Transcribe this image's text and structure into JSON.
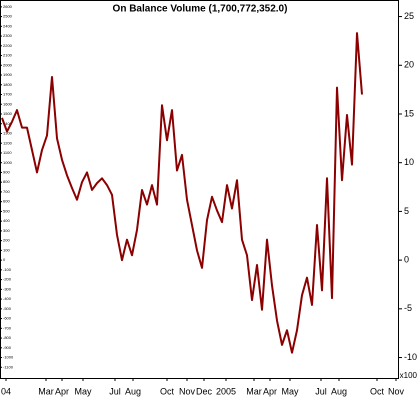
{
  "chart_data": {
    "type": "line",
    "title": "On Balance Volume (1,700,772,352.0)",
    "y_label": "x100",
    "x": [
      0,
      1,
      2,
      3,
      4,
      5,
      6,
      7,
      8,
      9,
      10,
      11,
      12,
      13,
      14,
      15,
      16,
      17,
      18,
      19,
      20,
      21,
      22,
      23,
      24,
      25,
      26,
      27,
      28,
      29,
      30,
      31,
      32,
      33,
      34,
      35,
      36,
      37,
      38,
      39,
      40,
      41,
      42,
      43,
      44,
      45,
      46,
      47,
      48,
      49,
      50,
      51,
      52,
      53,
      54,
      55,
      56,
      57,
      58,
      59,
      60,
      61,
      62,
      63,
      64,
      65,
      66,
      67,
      68,
      69,
      70,
      71,
      72
    ],
    "series": [
      {
        "name": "On Balance Volume",
        "color": "#8b0000",
        "values": [
          14.6,
          13.2,
          14.2,
          15.4,
          13.6,
          13.6,
          11.3,
          9.0,
          11.3,
          12.8,
          18.8,
          12.5,
          10.3,
          8.7,
          7.4,
          6.2,
          8.0,
          9.0,
          7.2,
          7.9,
          8.4,
          7.7,
          6.7,
          2.6,
          0,
          2.1,
          0.5,
          3.1,
          7.2,
          5.7,
          7.7,
          5.7,
          15.9,
          12.3,
          15.4,
          9.2,
          10.8,
          6.2,
          3.6,
          1.0,
          -0.8,
          4.1,
          6.5,
          5.1,
          3.9,
          7.7,
          5.3,
          8.2,
          2.1,
          0.5,
          -4.1,
          -0.5,
          -5.1,
          2.1,
          -2.6,
          -6.2,
          -8.7,
          -7.2,
          -9.5,
          -7.2,
          -3.6,
          -1.8,
          -4.6,
          3.6,
          -3.1,
          8.4,
          -3.9,
          17.7,
          8.2,
          14.9,
          9.8,
          23.3,
          17.0
        ]
      }
    ],
    "xlim": [
      -0.4,
      79.2
    ],
    "xticks": [
      {
        "value": 0.8,
        "label": "04"
      },
      {
        "value": 8.8,
        "label": "Mar"
      },
      {
        "value": 12,
        "label": "Apr"
      },
      {
        "value": 16.2,
        "label": "May"
      },
      {
        "value": 22.6,
        "label": "Jul"
      },
      {
        "value": 26.2,
        "label": "Aug"
      },
      {
        "value": 33,
        "label": "Oct"
      },
      {
        "value": 37,
        "label": "Nov"
      },
      {
        "value": 40.4,
        "label": "Dec"
      },
      {
        "value": 44.8,
        "label": "2005"
      },
      {
        "value": 50.4,
        "label": "Mar"
      },
      {
        "value": 53.6,
        "label": "Apr"
      },
      {
        "value": 57.6,
        "label": "May"
      },
      {
        "value": 63.8,
        "label": "Jul"
      },
      {
        "value": 67.4,
        "label": "Aug"
      },
      {
        "value": 75,
        "label": "Oct"
      },
      {
        "value": 78.8,
        "label": "Nov"
      }
    ],
    "ylim": [
      -12.1,
      26.7
    ],
    "yticks": [
      -10,
      -5,
      0,
      5,
      10,
      15,
      20,
      25
    ],
    "y2lim": [
      -1210,
      2670
    ],
    "y2ticks": [
      -1100,
      -1000,
      -900,
      -800,
      -700,
      -600,
      -500,
      -400,
      -300,
      -200,
      -100,
      0,
      100,
      200,
      300,
      400,
      500,
      600,
      700,
      800,
      900,
      1000,
      1100,
      1200,
      1300,
      1400,
      1500,
      1600,
      1700,
      1800,
      1900,
      2000,
      2100,
      2200,
      2300,
      2400,
      2500,
      2600
    ]
  }
}
